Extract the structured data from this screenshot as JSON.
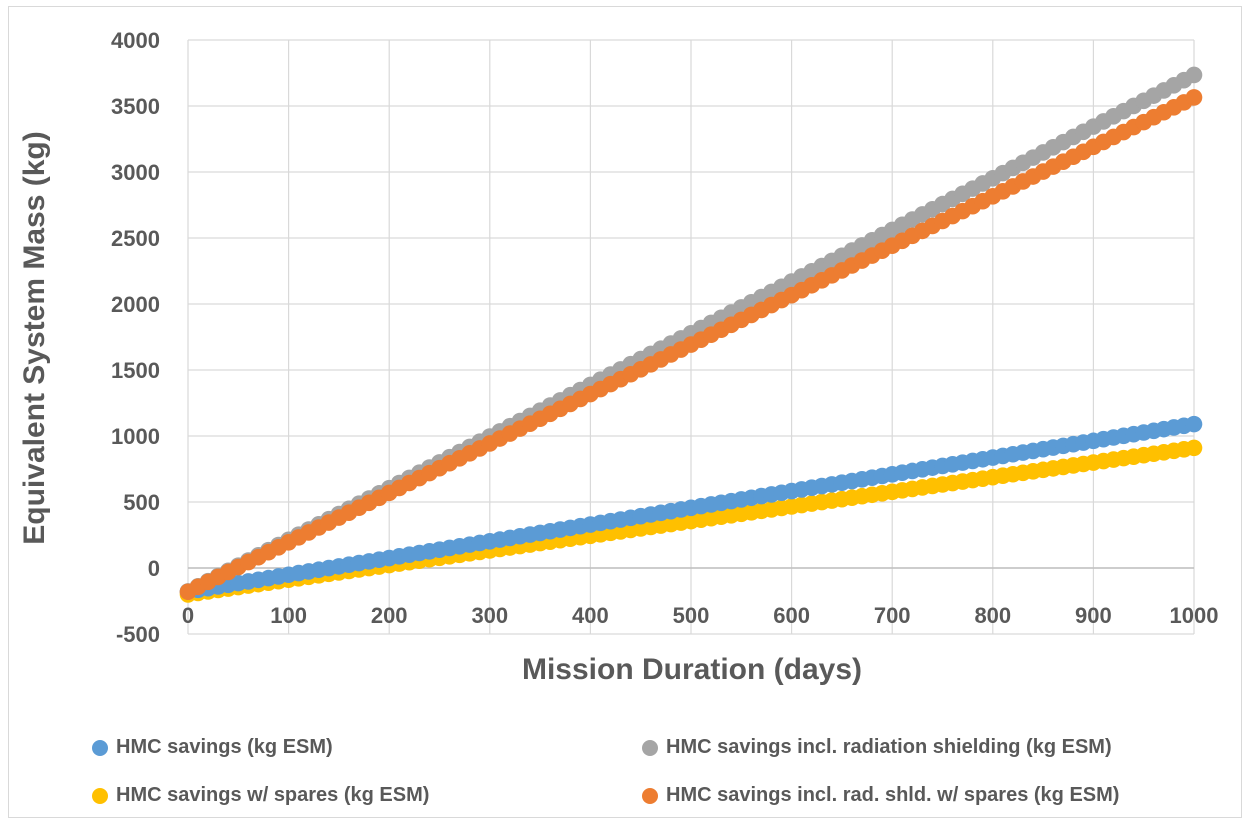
{
  "chart_data": {
    "type": "scatter",
    "xlabel": "Mission Duration (days)",
    "ylabel": "Equivalent System Mass (kg)",
    "xlim": [
      0,
      1000
    ],
    "ylim": [
      -500,
      4000
    ],
    "xticks": [
      "0",
      "100",
      "200",
      "300",
      "400",
      "500",
      "600",
      "700",
      "800",
      "900",
      "1000"
    ],
    "yticks": [
      "-500",
      "0",
      "500",
      "1000",
      "1500",
      "2000",
      "2500",
      "3000",
      "3500",
      "4000"
    ],
    "grid": true,
    "legend_position": "bottom",
    "x_step": 10,
    "series": [
      {
        "name": "HMC savings (kg ESM)",
        "color": "#5b9bd5",
        "x_start": 0,
        "x_end": 1000,
        "y_start": -178,
        "y_end": 1090
      },
      {
        "name": "HMC savings incl. radiation shielding (kg ESM)",
        "color": "#a5a5a5",
        "x_start": 0,
        "x_end": 1000,
        "y_start": -178,
        "y_end": 3735
      },
      {
        "name": "HMC savings w/ spares (kg ESM)",
        "color": "#ffc000",
        "x_start": 0,
        "x_end": 1000,
        "y_start": -200,
        "y_end": 910
      },
      {
        "name": "HMC savings incl. rad. shld. w/ spares (kg ESM)",
        "color": "#ed7d31",
        "x_start": 0,
        "x_end": 1000,
        "y_start": -180,
        "y_end": 3565
      }
    ]
  }
}
